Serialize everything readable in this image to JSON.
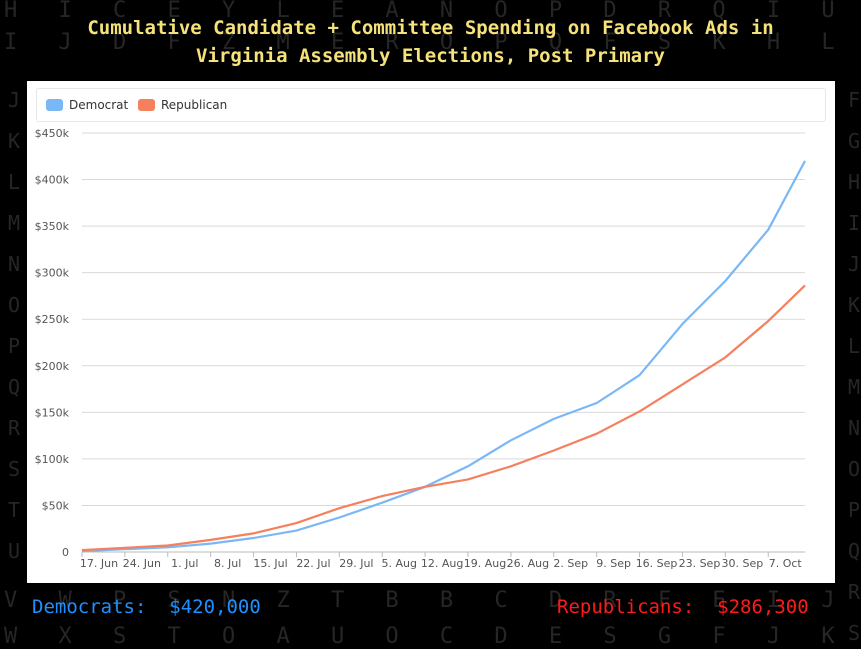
{
  "title_line1": "Cumulative Candidate + Committee Spending on Facebook Ads in",
  "title_line2": "Virginia Assembly Elections, Post Primary",
  "background_rows": [
    "H I C E Y L E A N O P D R Q I U V F G X M Z J B G D",
    "I J D F Z M E R O P Q F S K H L V W G Y T V N A K C H E",
    "V W P S N Z T B B C D R F E I J K L U V M A O X Q U S",
    "W X S T O A U O C D E S G F J K L V W N B P Y R V T"
  ],
  "background_left": "JKLMNOPQRSTU",
  "background_right": "FGHIJKLMNOPQRS",
  "totals": {
    "dem_label": "Democrats:",
    "dem_value": "$420,000",
    "rep_label": "Republicans:",
    "rep_value": "$286,300"
  },
  "colors": {
    "dem": "#7ab8f5",
    "rep": "#f5805e",
    "dem_text": "#1e90ff",
    "rep_text": "#ff1a1a",
    "title": "#f5e27a"
  },
  "chart_data": {
    "type": "line",
    "title": "",
    "xlabel": "",
    "ylabel": "",
    "ylim": [
      0,
      450000
    ],
    "yticks": [
      0,
      50000,
      100000,
      150000,
      200000,
      250000,
      300000,
      350000,
      400000,
      450000
    ],
    "ytick_labels": [
      "0",
      "$50k",
      "$100k",
      "$150k",
      "$200k",
      "$250k",
      "$300k",
      "$350k",
      "$400k",
      "$450k"
    ],
    "xticks": [
      "17. Jun",
      "24. Jun",
      "1. Jul",
      "8. Jul",
      "15. Jul",
      "22. Jul",
      "29. Jul",
      "5. Aug",
      "12. Aug",
      "19. Aug",
      "26. Aug",
      "2. Sep",
      "9. Sep",
      "16. Sep",
      "23. Sep",
      "30. Sep",
      "7. Oct"
    ],
    "x_start": "17. Jun",
    "x_end": "13. Oct",
    "grid": true,
    "legend_position": "top-left",
    "series": [
      {
        "name": "Democrat",
        "color": "#7ab8f5",
        "points": [
          [
            "17. Jun",
            1000
          ],
          [
            "24. Jun",
            3000
          ],
          [
            "1. Jul",
            5000
          ],
          [
            "8. Jul",
            9000
          ],
          [
            "15. Jul",
            15000
          ],
          [
            "22. Jul",
            23000
          ],
          [
            "29. Jul",
            37000
          ],
          [
            "5. Aug",
            53000
          ],
          [
            "12. Aug",
            70000
          ],
          [
            "19. Aug",
            92000
          ],
          [
            "26. Aug",
            120000
          ],
          [
            "2. Sep",
            143000
          ],
          [
            "9. Sep",
            160000
          ],
          [
            "16. Sep",
            190000
          ],
          [
            "23. Sep",
            245000
          ],
          [
            "30. Sep",
            291000
          ],
          [
            "7. Oct",
            346000
          ],
          [
            "13. Oct",
            420000
          ]
        ]
      },
      {
        "name": "Republican",
        "color": "#f5805e",
        "points": [
          [
            "17. Jun",
            2000
          ],
          [
            "24. Jun",
            4500
          ],
          [
            "1. Jul",
            7000
          ],
          [
            "8. Jul",
            13000
          ],
          [
            "15. Jul",
            20000
          ],
          [
            "22. Jul",
            31000
          ],
          [
            "29. Jul",
            47000
          ],
          [
            "5. Aug",
            60000
          ],
          [
            "12. Aug",
            70000
          ],
          [
            "19. Aug",
            78000
          ],
          [
            "26. Aug",
            92000
          ],
          [
            "2. Sep",
            109000
          ],
          [
            "9. Sep",
            127000
          ],
          [
            "16. Sep",
            151000
          ],
          [
            "23. Sep",
            180000
          ],
          [
            "30. Sep",
            209000
          ],
          [
            "7. Oct",
            248000
          ],
          [
            "13. Oct",
            286300
          ]
        ]
      }
    ]
  }
}
